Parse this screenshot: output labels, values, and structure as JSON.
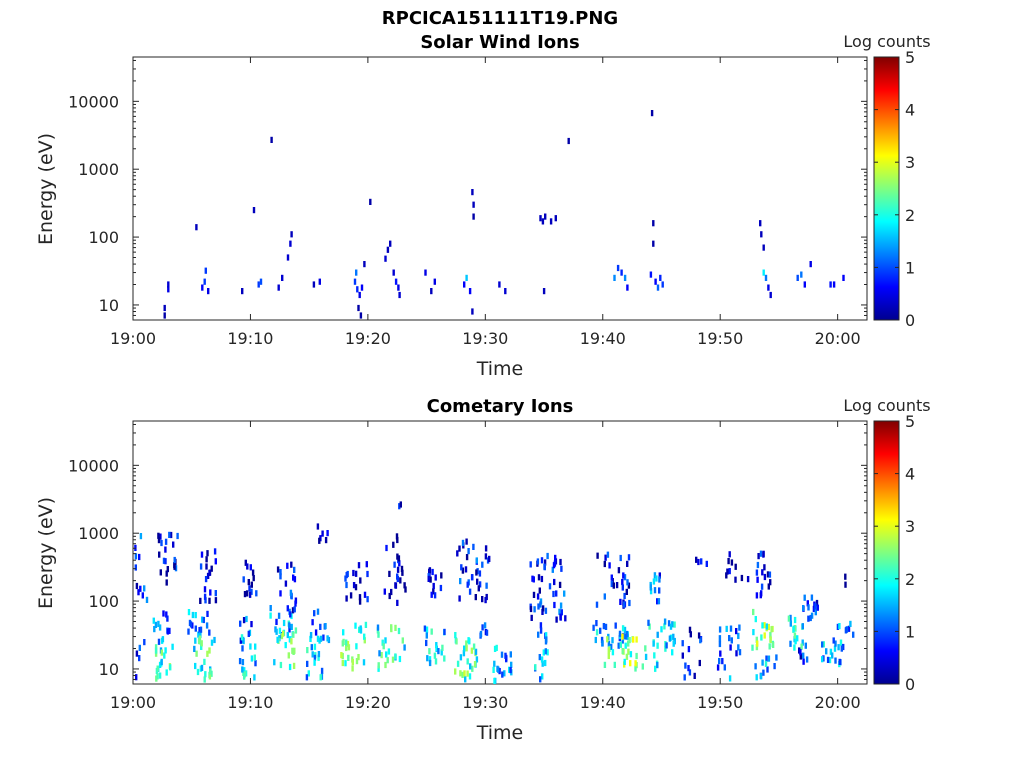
{
  "figure_title": "RPCICA151111T19.PNG",
  "chart_data": [
    {
      "type": "heatmap",
      "title": "Solar Wind Ions",
      "xlabel": "Time",
      "ylabel": "Energy (eV)",
      "colorbar_label": "Log counts",
      "colorbar_ticks": [
        "0",
        "1",
        "2",
        "3",
        "4",
        "5"
      ],
      "colorbar_range": [
        0,
        5
      ],
      "colormap": "jet",
      "y_scale": "log",
      "ylim": [
        6,
        45000
      ],
      "xlim_minutes": [
        0,
        62.5
      ],
      "x_tick_labels": [
        "19:00",
        "19:10",
        "19:20",
        "19:30",
        "19:40",
        "19:50",
        "20:00"
      ],
      "x_tick_minutes": [
        0,
        10,
        20,
        30,
        40,
        50,
        60
      ],
      "y_tick_labels": [
        "10",
        "100",
        "1000",
        "10000"
      ],
      "y_tick_values": [
        10,
        100,
        1000,
        10000
      ],
      "cells": [
        [
          2.6,
          7,
          0.2
        ],
        [
          2.6,
          9,
          0.3
        ],
        [
          2.9,
          17,
          0.5
        ],
        [
          2.9,
          20,
          0.4
        ],
        [
          5.3,
          140,
          0.3
        ],
        [
          5.8,
          18,
          0.6
        ],
        [
          6.0,
          22,
          0.9
        ],
        [
          6.1,
          32,
          0.9
        ],
        [
          6.3,
          16,
          0.5
        ],
        [
          9.2,
          16,
          0.3
        ],
        [
          10.2,
          250,
          0.3
        ],
        [
          10.6,
          20,
          0.9
        ],
        [
          10.8,
          22,
          1.0
        ],
        [
          11.7,
          2700,
          0.2
        ],
        [
          12.3,
          18,
          0.4
        ],
        [
          12.6,
          25,
          0.4
        ],
        [
          13.1,
          50,
          0.4
        ],
        [
          13.3,
          80,
          0.4
        ],
        [
          13.4,
          110,
          0.3
        ],
        [
          15.3,
          20,
          0.3
        ],
        [
          15.8,
          22,
          0.5
        ],
        [
          18.8,
          22,
          0.9
        ],
        [
          18.9,
          30,
          1.2
        ],
        [
          19.0,
          17,
          0.8
        ],
        [
          19.1,
          9,
          0.2
        ],
        [
          19.2,
          14,
          0.5
        ],
        [
          19.3,
          7,
          0.2
        ],
        [
          19.4,
          18,
          0.6
        ],
        [
          19.6,
          40,
          0.3
        ],
        [
          20.1,
          330,
          0.2
        ],
        [
          21.4,
          48,
          0.4
        ],
        [
          21.6,
          65,
          0.3
        ],
        [
          21.8,
          80,
          0.3
        ],
        [
          22.1,
          30,
          0.4
        ],
        [
          22.3,
          22,
          0.7
        ],
        [
          22.5,
          18,
          0.5
        ],
        [
          22.6,
          14,
          0.4
        ],
        [
          24.8,
          30,
          0.5
        ],
        [
          25.3,
          16,
          0.3
        ],
        [
          25.6,
          22,
          0.5
        ],
        [
          28.1,
          20,
          0.6
        ],
        [
          28.3,
          25,
          1.6
        ],
        [
          28.6,
          16,
          0.6
        ],
        [
          28.8,
          8,
          0.3
        ],
        [
          28.8,
          460,
          0.3
        ],
        [
          28.9,
          300,
          0.3
        ],
        [
          28.9,
          200,
          0.2
        ],
        [
          31.1,
          20,
          0.4
        ],
        [
          31.6,
          16,
          0.4
        ],
        [
          34.6,
          190,
          0.3
        ],
        [
          34.8,
          170,
          0.3
        ],
        [
          35.0,
          200,
          0.3
        ],
        [
          35.5,
          170,
          0.3
        ],
        [
          35.9,
          190,
          0.3
        ],
        [
          34.9,
          16,
          0.3
        ],
        [
          37.0,
          2600,
          0.2
        ],
        [
          40.9,
          25,
          1.3
        ],
        [
          41.2,
          35,
          0.9
        ],
        [
          41.5,
          30,
          0.8
        ],
        [
          41.8,
          25,
          1.3
        ],
        [
          42.0,
          18,
          0.6
        ],
        [
          44.1,
          6700,
          0.2
        ],
        [
          44.2,
          160,
          0.2
        ],
        [
          44.2,
          80,
          0.2
        ],
        [
          44.0,
          28,
          0.7
        ],
        [
          44.4,
          22,
          0.6
        ],
        [
          44.6,
          18,
          1.1
        ],
        [
          44.8,
          25,
          0.8
        ],
        [
          45.0,
          20,
          0.9
        ],
        [
          53.3,
          160,
          0.3
        ],
        [
          53.4,
          110,
          0.3
        ],
        [
          53.6,
          70,
          0.3
        ],
        [
          53.6,
          30,
          1.8
        ],
        [
          53.8,
          25,
          1.2
        ],
        [
          54.0,
          18,
          0.5
        ],
        [
          54.2,
          14,
          0.4
        ],
        [
          56.5,
          25,
          1.0
        ],
        [
          56.8,
          28,
          1.2
        ],
        [
          57.1,
          20,
          0.6
        ],
        [
          57.6,
          40,
          0.5
        ],
        [
          59.3,
          20,
          0.7
        ],
        [
          59.6,
          20,
          0.6
        ],
        [
          60.4,
          25,
          0.6
        ]
      ]
    },
    {
      "type": "heatmap",
      "title": "Cometary Ions",
      "xlabel": "Time",
      "ylabel": "Energy (eV)",
      "colorbar_label": "Log counts",
      "colorbar_ticks": [
        "0",
        "1",
        "2",
        "3",
        "4",
        "5"
      ],
      "colorbar_range": [
        0,
        5
      ],
      "colormap": "jet",
      "y_scale": "log",
      "ylim": [
        6,
        45000
      ],
      "xlim_minutes": [
        0,
        62.5
      ],
      "x_tick_labels": [
        "19:00",
        "19:10",
        "19:20",
        "19:30",
        "19:40",
        "19:50",
        "20:00"
      ],
      "x_tick_minutes": [
        0,
        10,
        20,
        30,
        40,
        50,
        60
      ],
      "y_tick_labels": [
        "10",
        "100",
        "1000",
        "10000"
      ],
      "y_tick_values": [
        10,
        100,
        1000,
        10000
      ],
      "clusters": [
        [
          0.5,
          0.6,
          2,
          1000,
          0.8,
          20
        ],
        [
          2.3,
          0.7,
          25,
          70,
          1.2,
          14
        ],
        [
          2.5,
          0.8,
          7,
          22,
          2.0,
          20
        ],
        [
          3.0,
          1.0,
          150,
          1000,
          0.5,
          22
        ],
        [
          5.5,
          0.9,
          25,
          70,
          1.2,
          18
        ],
        [
          6.0,
          0.9,
          7,
          30,
          2.0,
          24
        ],
        [
          6.3,
          0.7,
          100,
          600,
          0.5,
          20
        ],
        [
          9.4,
          0.6,
          25,
          60,
          1.0,
          10
        ],
        [
          9.6,
          0.8,
          7,
          30,
          1.6,
          16
        ],
        [
          9.8,
          0.7,
          120,
          400,
          0.4,
          14
        ],
        [
          12.6,
          1.0,
          25,
          80,
          1.4,
          18
        ],
        [
          12.9,
          1.0,
          10,
          40,
          2.2,
          20
        ],
        [
          13.0,
          1.0,
          60,
          350,
          0.7,
          18
        ],
        [
          15.3,
          0.8,
          7,
          35,
          1.6,
          18
        ],
        [
          15.8,
          0.8,
          25,
          70,
          1.0,
          12
        ],
        [
          16.1,
          0.5,
          700,
          1300,
          0.3,
          6
        ],
        [
          18.7,
          1.1,
          10,
          45,
          2.3,
          26
        ],
        [
          18.9,
          1.0,
          80,
          400,
          0.5,
          18
        ],
        [
          21.9,
          1.2,
          10,
          45,
          1.9,
          24
        ],
        [
          22.2,
          0.9,
          80,
          900,
          0.4,
          24
        ],
        [
          22.7,
          0.3,
          2400,
          2700,
          0.3,
          2
        ],
        [
          25.5,
          1.0,
          10,
          40,
          1.6,
          20
        ],
        [
          25.6,
          0.6,
          120,
          400,
          0.4,
          14
        ],
        [
          28.3,
          1.0,
          7,
          40,
          2.2,
          28
        ],
        [
          28.9,
          1.4,
          100,
          800,
          0.7,
          36
        ],
        [
          29.6,
          0.7,
          30,
          45,
          1.0,
          6
        ],
        [
          31.5,
          0.9,
          6,
          22,
          1.3,
          20
        ],
        [
          34.7,
          0.6,
          6,
          45,
          1.4,
          18
        ],
        [
          35.3,
          1.6,
          50,
          500,
          0.7,
          46
        ],
        [
          40.7,
          1.8,
          20,
          50,
          1.5,
          30
        ],
        [
          41.4,
          1.4,
          10,
          30,
          2.5,
          26
        ],
        [
          40.8,
          1.4,
          80,
          500,
          0.5,
          30
        ],
        [
          44.7,
          1.4,
          10,
          50,
          1.7,
          30
        ],
        [
          44.3,
          0.5,
          80,
          300,
          1.1,
          12
        ],
        [
          47.5,
          0.8,
          7,
          40,
          0.7,
          14
        ],
        [
          48.3,
          0.5,
          300,
          500,
          0.3,
          4
        ],
        [
          50.7,
          1.0,
          7,
          45,
          1.1,
          20
        ],
        [
          51.4,
          1.0,
          200,
          500,
          0.3,
          10
        ],
        [
          53.6,
          1.0,
          20,
          70,
          2.4,
          22
        ],
        [
          53.8,
          0.9,
          7,
          20,
          1.5,
          12
        ],
        [
          53.6,
          0.6,
          100,
          500,
          0.6,
          18
        ],
        [
          56.5,
          0.8,
          20,
          60,
          1.8,
          18
        ],
        [
          57.5,
          0.8,
          40,
          120,
          0.9,
          16
        ],
        [
          57.0,
          0.4,
          10,
          20,
          0.6,
          6
        ],
        [
          59.3,
          1.1,
          10,
          30,
          1.5,
          20
        ],
        [
          60.5,
          0.8,
          30,
          50,
          1.2,
          8
        ],
        [
          60.5,
          0.3,
          150,
          250,
          0.3,
          2
        ]
      ]
    }
  ]
}
